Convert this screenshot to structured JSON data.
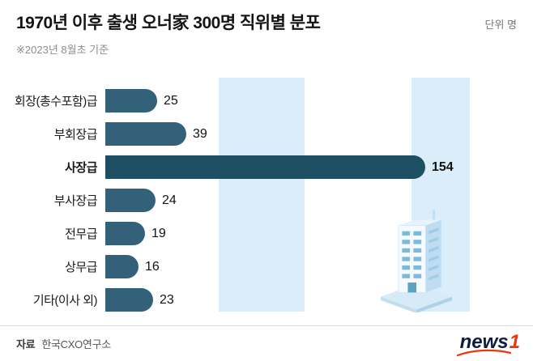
{
  "header": {
    "title": "1970년 이후 출생 오너家 300명 직위별 분포",
    "unit_label": "단위 명",
    "note": "※2023년 8월초 기준"
  },
  "chart_data": {
    "type": "bar",
    "orientation": "horizontal",
    "title": "1970년 이후 출생 오너家 300명 직위별 분포",
    "unit": "명",
    "categories": [
      "회장(총수포함)급",
      "부회장급",
      "사장급",
      "부사장급",
      "전무급",
      "상무급",
      "기타(이사 외)"
    ],
    "values": [
      25,
      39,
      154,
      24,
      19,
      16,
      23
    ],
    "highlight_index": 2,
    "xlim": [
      0,
      160
    ],
    "grid": false,
    "legend_position": "none",
    "bar_color": "#33617a",
    "highlight_bar_color": "#1d4e62",
    "band_color": "#daedf9"
  },
  "footer": {
    "source_label": "자료",
    "source_name": "한국CXO연구소"
  },
  "logo": {
    "news": "news",
    "one": "1"
  }
}
